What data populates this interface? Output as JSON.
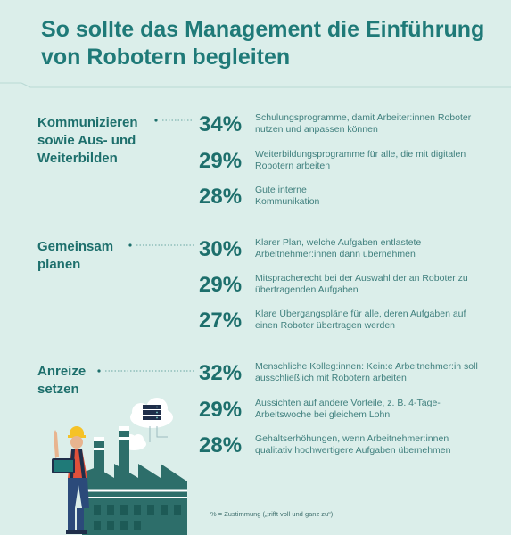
{
  "title": "So sollte das Management die Einführung von Robotern begleiten",
  "groups": [
    {
      "title": "Kommunizieren sowie Aus- und Weiterbilden",
      "items": [
        {
          "percent": "34%",
          "text": "Schulungsprogramme, damit Arbeiter:innen Roboter nutzen und anpassen können"
        },
        {
          "percent": "29%",
          "text": "Weiterbildungsprogramme für alle, die mit digitalen Robotern arbeiten"
        },
        {
          "percent": "28%",
          "text": "Gute interne Kommunikation"
        }
      ]
    },
    {
      "title": "Gemeinsam planen",
      "items": [
        {
          "percent": "30%",
          "text": "Klarer Plan, welche Aufgaben entlastete Arbeitnehmer:innen dann übernehmen"
        },
        {
          "percent": "29%",
          "text": "Mitspracherecht bei der Auswahl der an Roboter zu übertragenden Aufgaben"
        },
        {
          "percent": "27%",
          "text": "Klare Übergangspläne für alle, deren Aufgaben auf einen Roboter übertragen werden"
        }
      ]
    },
    {
      "title": "Anreize setzen",
      "items": [
        {
          "percent": "32%",
          "text": "Menschliche Kolleg:innen: Kein:e Arbeitnehmer:in soll ausschließlich mit Robotern arbeiten"
        },
        {
          "percent": "29%",
          "text": "Aussichten auf andere Vorteile, z. B. 4-Tage-Arbeitswoche bei gleichem Lohn"
        },
        {
          "percent": "28%",
          "text": "Gehaltserhöhungen, wenn Arbeitnehmer:innen qualitativ hochwertigere Aufgaben übernehmen"
        }
      ]
    }
  ],
  "footnote": "% = Zustimmung („trifft voll und ganz zu“)",
  "colors": {
    "accent": "#1f7a78",
    "background": "#dbeeea",
    "text": "#3f7f7d"
  },
  "icons": [
    "factory-illustration",
    "worker-with-laptop-illustration",
    "cloud-server-icon",
    "cloud-icon"
  ]
}
